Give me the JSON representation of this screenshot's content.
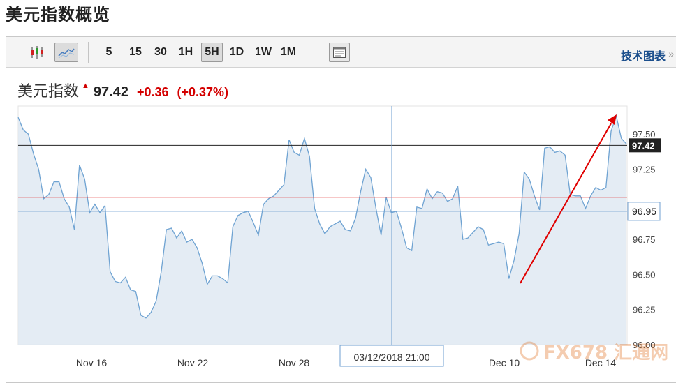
{
  "page": {
    "title": "美元指数概览"
  },
  "toolbar": {
    "chart_types": [
      {
        "name": "candlestick-icon",
        "active": false
      },
      {
        "name": "line-chart-icon",
        "active": true
      }
    ],
    "intervals": [
      {
        "label": "5",
        "active": false
      },
      {
        "label": "15",
        "active": false
      },
      {
        "label": "30",
        "active": false
      },
      {
        "label": "1H",
        "active": false
      },
      {
        "label": "5H",
        "active": true
      },
      {
        "label": "1D",
        "active": false
      },
      {
        "label": "1W",
        "active": false
      },
      {
        "label": "1M",
        "active": false
      }
    ],
    "layout_icon": "panel-layout-icon",
    "tech_chart_label": "技术图表",
    "tech_chart_arrow": "»"
  },
  "quote": {
    "name": "美元指数",
    "price": "97.42",
    "change": "+0.36",
    "change_pct": "(+0.37%)"
  },
  "colors": {
    "line": "#6fa3d2",
    "fill": "#dfe9f2",
    "crosshair": "#6f9fd0",
    "reference_red": "#e02020",
    "last_price_line": "#222222",
    "annotation_arrow": "#e00000",
    "change_up": "#d40000"
  },
  "chart_data": {
    "type": "area",
    "ylim": [
      96.0,
      97.7
    ],
    "y_ticks": [
      "97.50",
      "97.25",
      "96.75",
      "96.50",
      "96.25",
      "96.00"
    ],
    "x_tick_labels": [
      "Nov 16",
      "Nov 22",
      "Nov 28",
      "Dec 10",
      "Dec 14"
    ],
    "last_price_label": "97.42",
    "last_price": 97.42,
    "crosshair_price_label": "96.95",
    "crosshair_price": 96.95,
    "crosshair_time_label": "03/12/2018 21:00",
    "reference_level": 97.05,
    "values": [
      97.62,
      97.53,
      97.5,
      97.36,
      97.25,
      97.04,
      97.07,
      97.16,
      97.16,
      97.04,
      96.98,
      96.82,
      97.28,
      97.18,
      96.94,
      97.0,
      96.94,
      96.99,
      96.52,
      96.45,
      96.44,
      96.48,
      96.39,
      96.38,
      96.21,
      96.19,
      96.23,
      96.31,
      96.52,
      96.82,
      96.83,
      96.76,
      96.81,
      96.73,
      96.75,
      96.69,
      96.58,
      96.43,
      96.49,
      96.49,
      96.47,
      96.44,
      96.84,
      96.92,
      96.94,
      96.95,
      96.87,
      96.78,
      97.0,
      97.04,
      97.06,
      97.1,
      97.14,
      97.46,
      97.37,
      97.35,
      97.47,
      97.34,
      96.97,
      96.86,
      96.79,
      96.84,
      96.86,
      96.88,
      96.82,
      96.81,
      96.9,
      97.09,
      97.25,
      97.19,
      96.97,
      96.78,
      97.05,
      96.94,
      96.95,
      96.83,
      96.69,
      96.67,
      96.98,
      96.97,
      97.11,
      97.04,
      97.09,
      97.08,
      97.02,
      97.04,
      97.13,
      96.75,
      96.76,
      96.8,
      96.84,
      96.82,
      96.71,
      96.72,
      96.73,
      96.72,
      96.47,
      96.6,
      96.79,
      97.23,
      97.18,
      97.06,
      96.96,
      97.4,
      97.41,
      97.37,
      97.38,
      97.35,
      97.07,
      97.06,
      97.06,
      96.97,
      97.06,
      97.12,
      97.1,
      97.12,
      97.52,
      97.63,
      97.47,
      97.43
    ]
  },
  "watermark": {
    "text": "FX678 汇通网"
  }
}
